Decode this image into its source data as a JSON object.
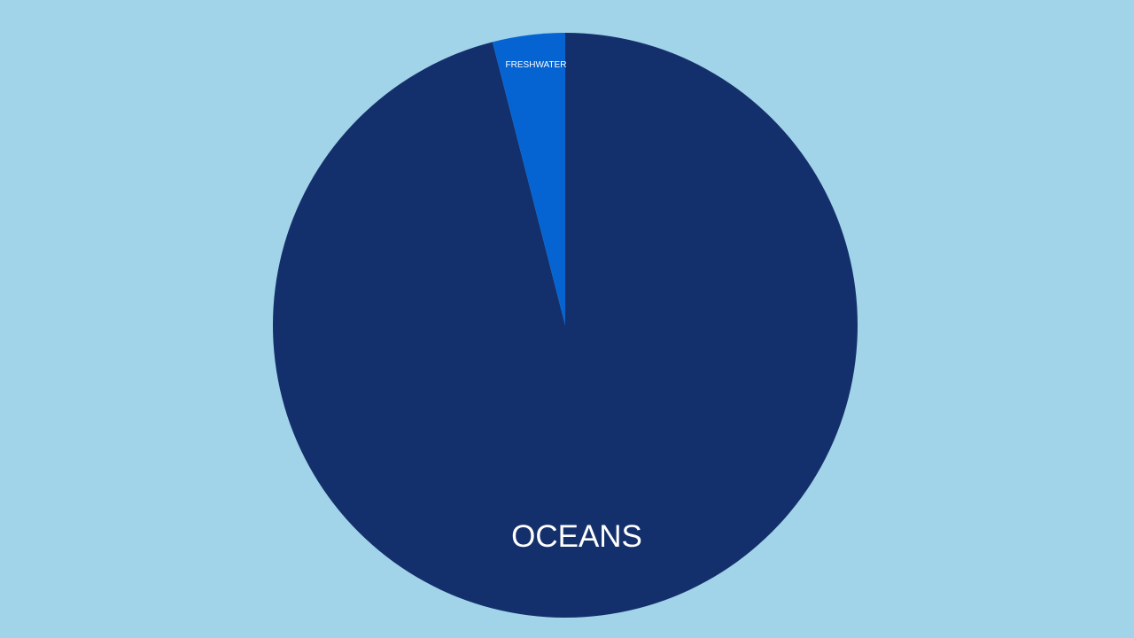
{
  "chart_data": {
    "type": "pie",
    "categories": [
      "OCEANS",
      "FRESHWATER"
    ],
    "values": [
      96,
      4
    ],
    "colors": [
      "#14306c",
      "#0564d2"
    ],
    "background": "#a2d4e9",
    "label_color": "#ffffff"
  }
}
